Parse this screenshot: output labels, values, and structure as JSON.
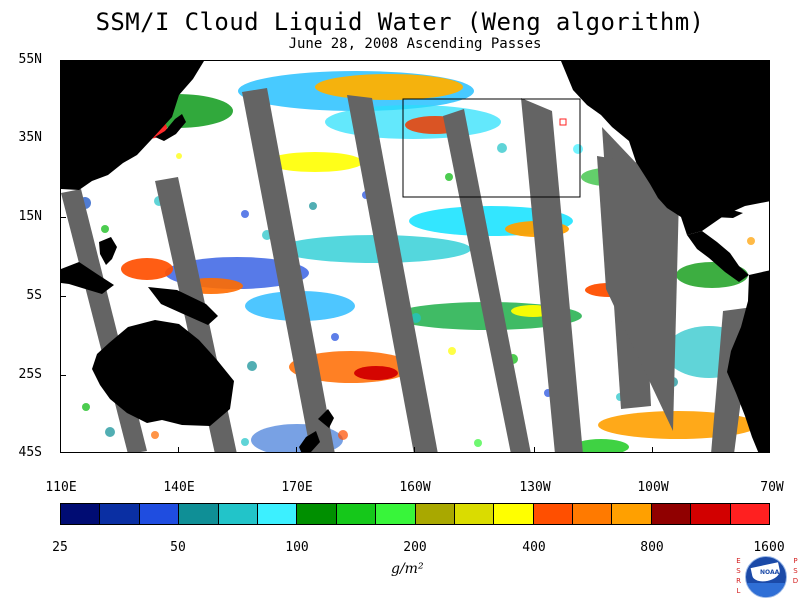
{
  "title": "SSM/I Cloud Liquid Water (Weng algorithm)",
  "subtitle": "June 28, 2008  Ascending Passes",
  "map": {
    "type": "pacific-cloud-liquid-water",
    "region": "Pacific Ocean",
    "lat_range": [
      "45S",
      "55N"
    ],
    "lon_range": [
      "110E",
      "70W"
    ],
    "lat_labels": [
      "55N",
      "35N",
      "15N",
      "5S",
      "25S",
      "45S"
    ],
    "lon_labels": [
      "110E",
      "140E",
      "170E",
      "160W",
      "130W",
      "100W",
      "70W"
    ],
    "land_color": "#000000",
    "missing_data_color": "#646464",
    "background_color": "#ffffff",
    "highlight_box": "rectangular outline over the northeast Pacific"
  },
  "legend": {
    "colors": [
      "#000c73",
      "#0a2fa3",
      "#1f4de0",
      "#0f8f96",
      "#22c4c9",
      "#3cf0ff",
      "#008f00",
      "#15c81a",
      "#38f53a",
      "#a9a800",
      "#dadc00",
      "#ffff00",
      "#ff4f00",
      "#ff7a00",
      "#ffa000",
      "#900000",
      "#d20000",
      "#ff2020"
    ],
    "labels": [
      "25",
      "50",
      "100",
      "200",
      "400",
      "800",
      "1600"
    ],
    "units": "g/m²"
  },
  "logo": {
    "left_letters": [
      "E",
      "S",
      "R",
      "L"
    ],
    "right_letters": [
      "P",
      "S",
      "D"
    ],
    "text": "NOAA"
  }
}
